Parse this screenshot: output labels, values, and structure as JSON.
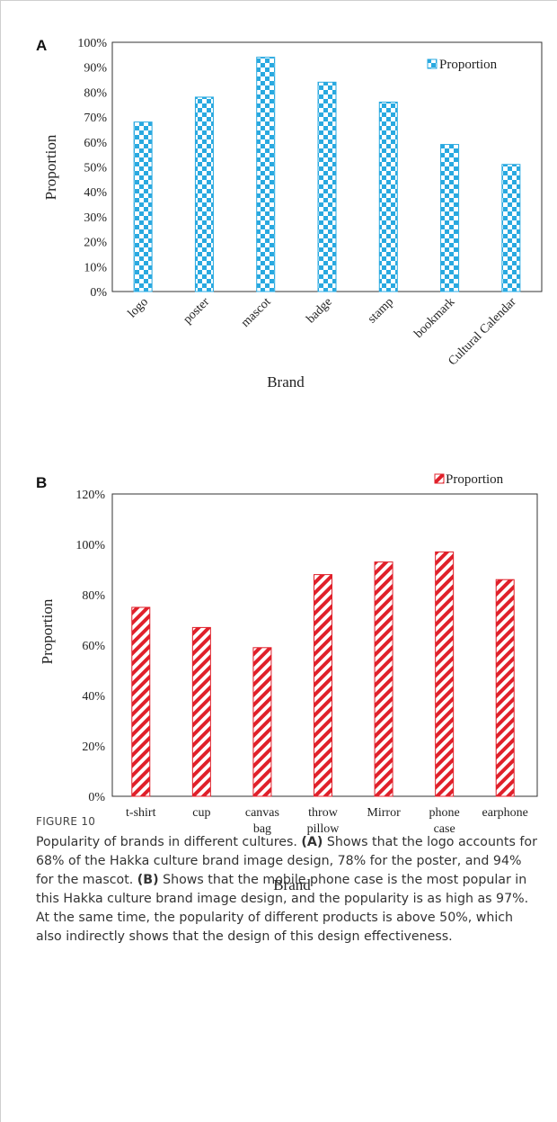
{
  "chart_data": [
    {
      "panel": "A",
      "type": "bar",
      "categories": [
        "logo",
        "poster",
        "mascot",
        "badge",
        "stamp",
        "bookmark",
        "Cultural Calendar"
      ],
      "series": [
        {
          "name": "Proportion",
          "values": [
            68,
            78,
            94,
            84,
            76,
            59,
            51
          ]
        }
      ],
      "xlabel": "Brand",
      "ylabel": "Proportion",
      "ylim": [
        0,
        100
      ],
      "yticks": [
        "0%",
        "10%",
        "20%",
        "30%",
        "40%",
        "50%",
        "60%",
        "70%",
        "80%",
        "90%",
        "100%"
      ],
      "legend": "top-right",
      "pattern": "checkerboard",
      "color": "#29a9e0"
    },
    {
      "panel": "B",
      "type": "bar",
      "categories": [
        "t-shirt",
        "cup",
        "canvas bag",
        "throw pillow",
        "Mirror",
        "phone case",
        "earphone"
      ],
      "category_lines": [
        [
          "t-shirt"
        ],
        [
          "cup"
        ],
        [
          "canvas",
          "bag"
        ],
        [
          "throw",
          "pillow"
        ],
        [
          "Mirror"
        ],
        [
          "phone",
          "case"
        ],
        [
          "earphone"
        ]
      ],
      "series": [
        {
          "name": "Proportion",
          "values": [
            75,
            67,
            59,
            88,
            93,
            97,
            86
          ]
        }
      ],
      "xlabel": "Brand",
      "ylabel": "Proportion",
      "ylim": [
        0,
        120
      ],
      "yticks": [
        "0%",
        "20%",
        "40%",
        "60%",
        "80%",
        "100%",
        "120%"
      ],
      "legend": "top-right",
      "pattern": "diagonal-stripes",
      "color": "#e0202a"
    }
  ],
  "caption": {
    "label": "FIGURE 10",
    "intro": "Popularity of brands in different cultures. ",
    "a_tag": "(A)",
    "a_text": " Shows that the logo accounts for 68% of the Hakka culture brand image design, 78% for the poster, and 94% for the mascot. ",
    "b_tag": "(B)",
    "b_text": " Shows that the mobile phone case is the most popular in this Hakka culture brand image design, and the popularity is as high as 97%. At the same time, the popularity of different products is above 50%, which also indirectly shows that the design of this design effectiveness."
  }
}
